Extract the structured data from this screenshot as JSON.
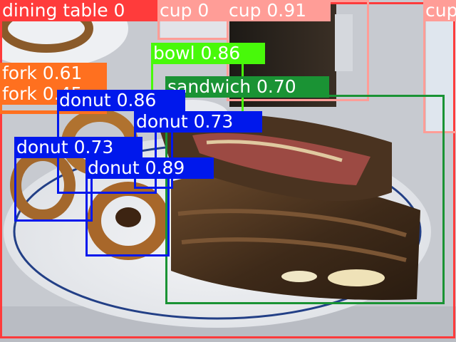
{
  "detections": [
    {
      "label": "dining table 0",
      "color": "#ff3b3b"
    },
    {
      "label": "cup 0",
      "color": "#ff9d97"
    },
    {
      "label": "cup 0.91",
      "color": "#ff9d97"
    },
    {
      "label": "cup",
      "color": "#ff9d97"
    },
    {
      "label": "bowl 0.86",
      "color": "#48f90a"
    },
    {
      "label": "sandwich 0.70",
      "color": "#1a9334"
    },
    {
      "label": "fork 0.61",
      "color": "#ff701f"
    },
    {
      "label": "fork 0.45",
      "color": "#ff701f"
    },
    {
      "label": "donut 0.86",
      "color": "#0018ec"
    },
    {
      "label": "donut 0.73",
      "color": "#0018ec"
    },
    {
      "label": "donut 0.73",
      "color": "#0018ec"
    },
    {
      "label": "donut 0.89",
      "color": "#0018ec"
    }
  ]
}
